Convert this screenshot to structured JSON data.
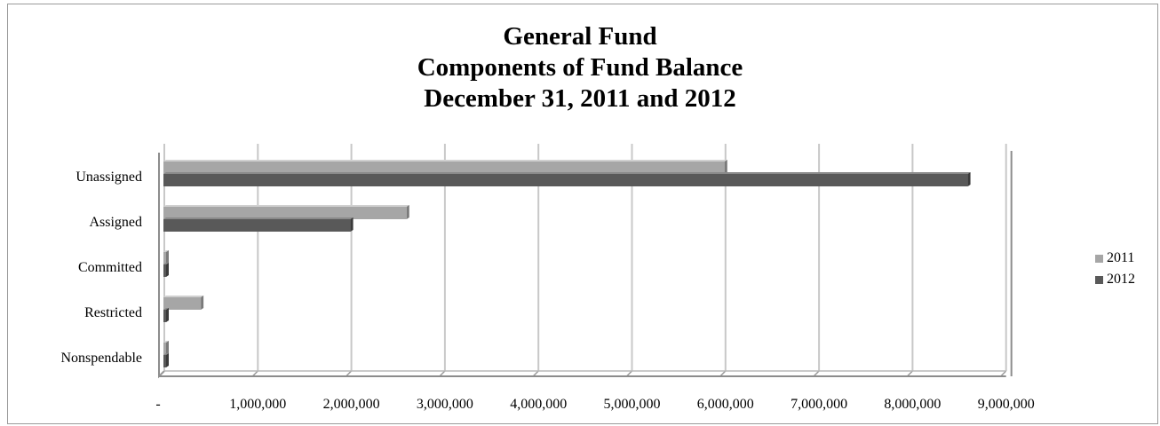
{
  "chart_data": {
    "type": "bar",
    "orientation": "horizontal",
    "title_lines": [
      "General Fund",
      "Components of Fund Balance",
      "December 31, 2011 and 2012"
    ],
    "categories": [
      "Unassigned",
      "Assigned",
      "Committed",
      "Restricted",
      "Nonspendable"
    ],
    "series": [
      {
        "name": "2011",
        "color": "#a6a6a6",
        "values": [
          6000000,
          2600000,
          0,
          400000,
          0
        ]
      },
      {
        "name": "2012",
        "color": "#595959",
        "values": [
          8600000,
          2000000,
          0,
          0,
          0
        ]
      }
    ],
    "x_tick_labels": [
      "-",
      "1,000,000",
      "2,000,000",
      "3,000,000",
      "4,000,000",
      "5,000,000",
      "6,000,000",
      "7,000,000",
      "8,000,000",
      "9,000,000"
    ],
    "xlim": [
      0,
      9000000
    ],
    "grid": true,
    "legend_position": "right"
  }
}
